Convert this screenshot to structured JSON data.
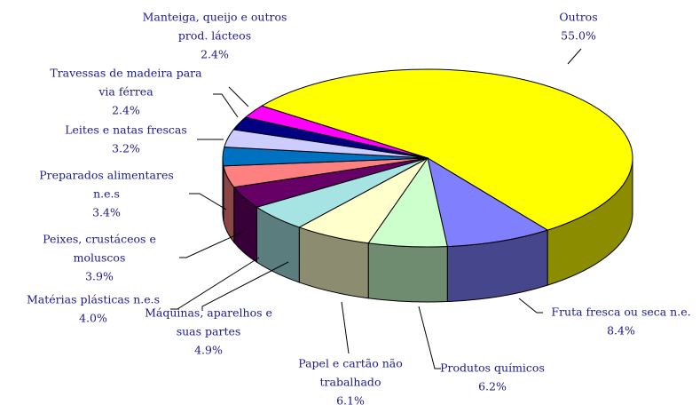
{
  "chart_data": {
    "type": "pie3d",
    "categories": [
      [
        "Outros"
      ],
      [
        "Fruta fresca ou seca n.e."
      ],
      [
        "Produtos químicos"
      ],
      [
        "Papel e cartão não",
        "trabalhado"
      ],
      [
        "Máquinas, aparelhos e",
        "suas partes"
      ],
      [
        "Matérias plásticas n.e.s"
      ],
      [
        "Peixes, crustáceos e",
        "moluscos"
      ],
      [
        "Preparados alimentares",
        "n.e.s"
      ],
      [
        "Leites e natas frescas"
      ],
      [
        "Travessas de madeira para",
        "via férrea"
      ],
      [
        "Manteiga, queijo e outros",
        "prod. lácteos"
      ]
    ],
    "values": [
      55.0,
      8.4,
      6.2,
      6.1,
      4.9,
      4.0,
      3.9,
      3.4,
      3.2,
      2.4,
      2.4
    ],
    "value_labels": [
      "55.0%",
      "8.4%",
      "6.2%",
      "6.1%",
      "4.9%",
      "4.0%",
      "3.9%",
      "3.4%",
      "3.2%",
      "2.4%",
      "2.4%"
    ],
    "colors": [
      "#ffff00",
      "#8080ff",
      "#ccffcc",
      "#ffffcc",
      "#a6e3e3",
      "#660066",
      "#ff8080",
      "#0070c0",
      "#ccccff",
      "#000080",
      "#ff00ff"
    ]
  }
}
